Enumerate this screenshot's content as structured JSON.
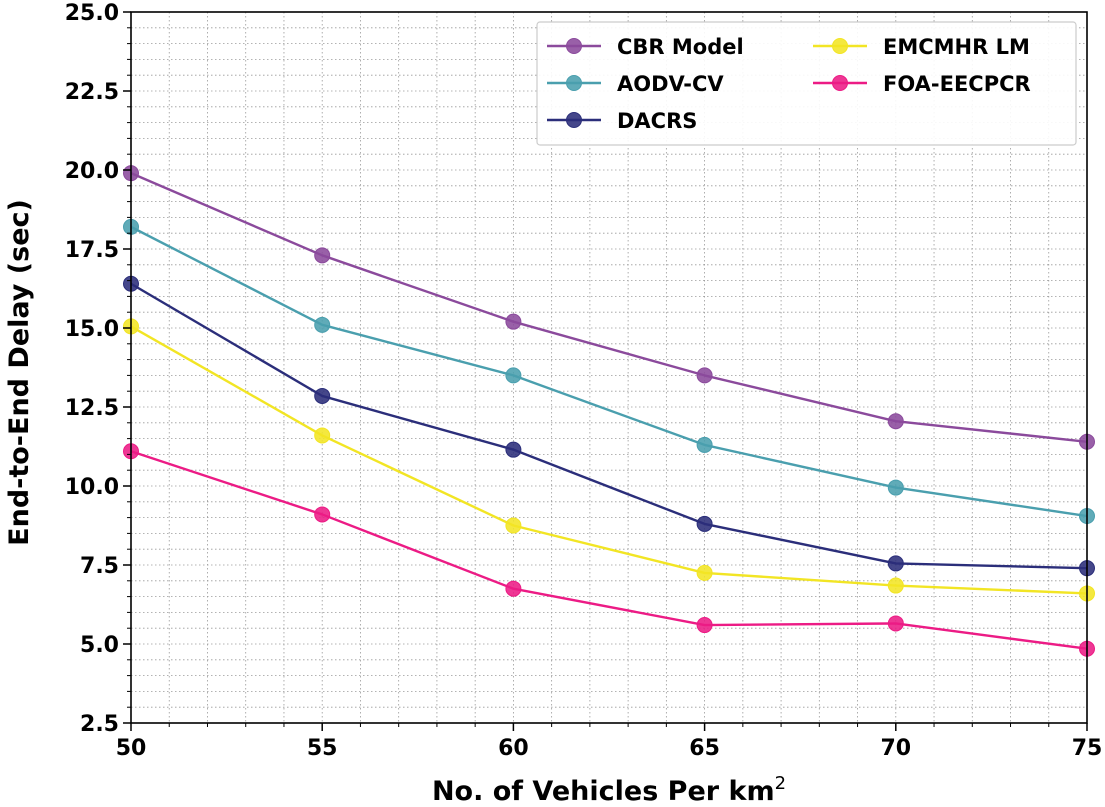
{
  "chart_data": {
    "type": "line",
    "title": "",
    "xlabel": "No. of Vehicles Per km",
    "xlabel_superscript": "2",
    "ylabel": "End-to-End Delay (sec)",
    "x": [
      50,
      55,
      60,
      65,
      70,
      75
    ],
    "xlim": [
      50,
      75
    ],
    "ylim": [
      2.5,
      25.0
    ],
    "xticks": [
      "50",
      "55",
      "60",
      "65",
      "70",
      "75"
    ],
    "yticks": [
      "2.5",
      "5.0",
      "7.5",
      "10.0",
      "12.5",
      "15.0",
      "17.5",
      "20.0",
      "22.5",
      "25.0"
    ],
    "grid": true,
    "legend_position": "top-right",
    "series": [
      {
        "name": "CBR Model",
        "color": "#8b4a9c",
        "values": [
          19.9,
          17.3,
          15.2,
          13.5,
          12.05,
          11.4
        ]
      },
      {
        "name": "AODV-CV",
        "color": "#4a9fae",
        "values": [
          18.2,
          15.1,
          13.5,
          11.3,
          9.95,
          9.05
        ]
      },
      {
        "name": "DACRS",
        "color": "#2b2e7a",
        "values": [
          16.4,
          12.85,
          11.15,
          8.8,
          7.55,
          7.4
        ]
      },
      {
        "name": "EMCMHR LM",
        "color": "#f2e524",
        "values": [
          15.05,
          11.6,
          8.75,
          7.25,
          6.85,
          6.6
        ]
      },
      {
        "name": "FOA-EECPCR",
        "color": "#ec1b85",
        "values": [
          11.1,
          9.1,
          6.75,
          5.6,
          5.65,
          4.85
        ]
      }
    ]
  }
}
